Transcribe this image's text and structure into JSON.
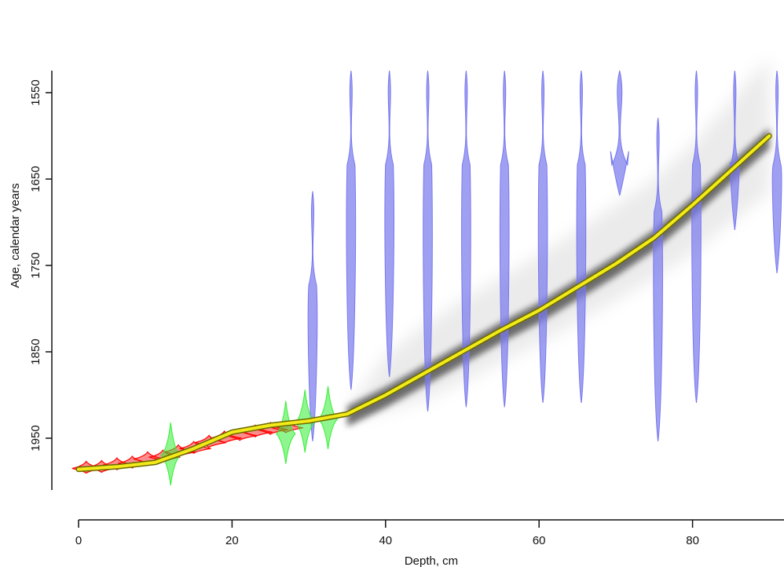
{
  "chart_data": {
    "type": "line",
    "title": "",
    "xlabel": "Depth, cm",
    "ylabel": "Age, calendar years",
    "xlim": [
      0,
      91
    ],
    "ylim": [
      2010,
      1460
    ],
    "y_axis_inverted": true,
    "x_ticks": [
      0,
      20,
      40,
      60,
      80
    ],
    "y_ticks": [
      1550,
      1650,
      1750,
      1850,
      1950
    ],
    "grid": false,
    "legend": "none",
    "colors": {
      "age_model_line": "#f2ea1a",
      "age_model_outline": "#6b6b00",
      "dated_210pb": "#ff0000",
      "dated_calibrated": "#33ee33",
      "dated_14c_violin": "#7777ee",
      "uncertainty_cloud": "#000000"
    },
    "series": [
      {
        "kind": "age-depth model (mean)",
        "x": [
          0,
          5,
          10,
          15,
          20,
          25,
          30,
          35,
          40,
          45,
          50,
          55,
          60,
          65,
          70,
          75,
          80,
          85,
          90
        ],
        "y": [
          1986,
          1983,
          1978,
          1962,
          1943,
          1935,
          1930,
          1922,
          1900,
          1875,
          1850,
          1825,
          1802,
          1775,
          1748,
          1718,
          1680,
          1640,
          1600
        ]
      },
      {
        "kind": "uncertainty band lower",
        "x": [
          35,
          40,
          45,
          50,
          55,
          60,
          65,
          70,
          75,
          80,
          85,
          90
        ],
        "y": [
          1926,
          1918,
          1905,
          1885,
          1862,
          1840,
          1815,
          1790,
          1765,
          1735,
          1700,
          1665
        ]
      },
      {
        "kind": "uncertainty band upper",
        "x": [
          35,
          40,
          45,
          50,
          55,
          60,
          65,
          70,
          75,
          80,
          85,
          90
        ],
        "y": [
          1918,
          1855,
          1820,
          1790,
          1765,
          1738,
          1710,
          1680,
          1650,
          1610,
          1560,
          1510
        ]
      },
      {
        "kind": "210Pb dates (red)",
        "x": [
          1,
          3,
          5,
          7,
          9,
          11,
          13,
          15,
          17,
          19,
          21,
          23,
          25,
          27
        ],
        "y": [
          1985,
          1984,
          1981,
          1979,
          1974,
          1972,
          1966,
          1962,
          1955,
          1950,
          1947,
          1943,
          1940,
          1938
        ]
      },
      {
        "kind": "calibrated dates (green)",
        "x": [
          12,
          27,
          29.5,
          32.5
        ],
        "y": [
          1970,
          1945,
          1932,
          1928
        ]
      },
      {
        "kind": "14C probability violins (blue)",
        "x": [
          30.5,
          35.5,
          40.5,
          45.5,
          50.5,
          55.5,
          60.5,
          65.5,
          70.5,
          75.5,
          80.5,
          85.5,
          91
        ],
        "y": [
          1955,
          1785,
          1770,
          1810,
          1805,
          1805,
          1800,
          1800,
          1560,
          1870,
          1800,
          1600,
          1650
        ]
      }
    ]
  }
}
